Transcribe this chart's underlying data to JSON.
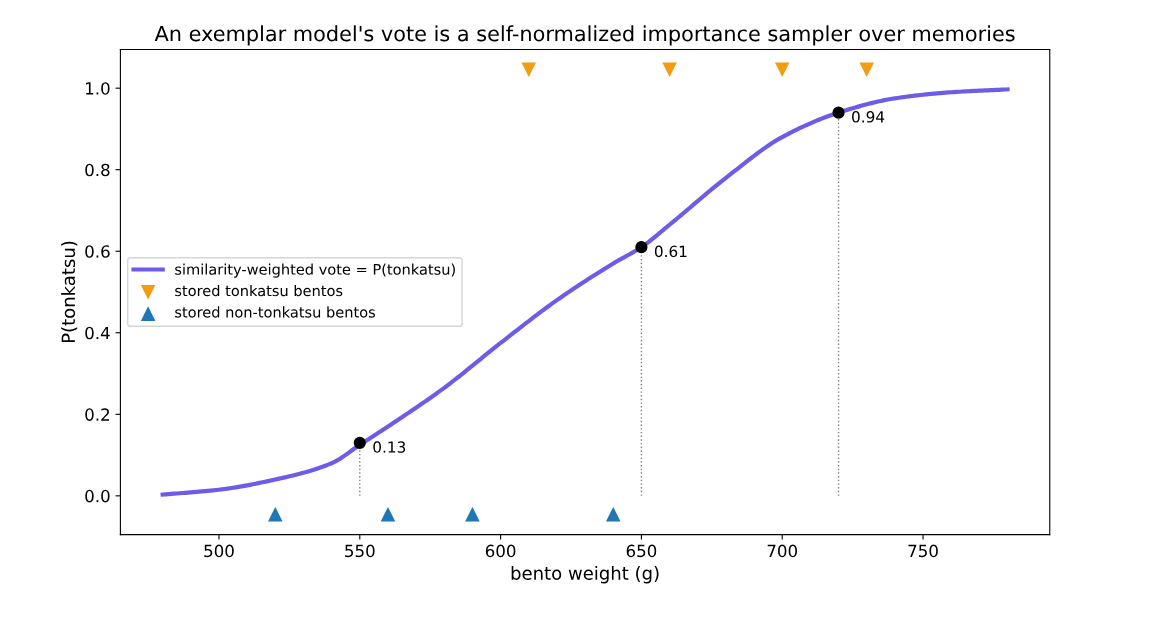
{
  "chart_data": {
    "type": "line",
    "title": "An exemplar model's vote is a self-normalized importance sampler over memories",
    "xlabel": "bento weight (g)",
    "ylabel": "P(tonkatsu)",
    "xlim": [
      465,
      795
    ],
    "xticks": [
      500,
      550,
      600,
      650,
      700,
      750
    ],
    "ylim": [
      -0.095,
      1.095
    ],
    "yticks": [
      {
        "value": 0,
        "label": "0.0"
      },
      0.2,
      0.4,
      0.6,
      0.8,
      {
        "value": 1,
        "label": "1.0"
      }
    ],
    "grid": false,
    "legend": "center left",
    "series": [
      {
        "name": "similarity-weighted vote = P(tonkatsu)",
        "color": "#6c5ce7",
        "marker": "none",
        "line_style": "solid",
        "x": [
          480,
          500,
          520,
          540,
          550,
          560,
          580,
          600,
          620,
          640,
          650,
          660,
          680,
          700,
          720,
          740,
          760,
          780
        ],
        "values": [
          0.003,
          0.015,
          0.04,
          0.08,
          0.125,
          0.17,
          0.265,
          0.375,
          0.48,
          0.57,
          0.61,
          0.665,
          0.78,
          0.88,
          0.94,
          0.975,
          0.99,
          0.997
        ]
      },
      {
        "type": "scatter",
        "name": "stored tonkatsu bentos",
        "color": "#f39c12",
        "marker": "triangle_down",
        "x": [
          610,
          660,
          700,
          730
        ],
        "values": [
          1.045,
          1.045,
          1.045,
          1.045
        ]
      },
      {
        "type": "scatter",
        "name": "stored non-tonkatsu bentos",
        "color": "#1f77b4",
        "marker": "triangle",
        "x": [
          520,
          560,
          590,
          640
        ],
        "values": [
          -0.045,
          -0.045,
          -0.045,
          -0.045
        ]
      },
      {
        "type": "lollipop",
        "color": "#000000",
        "marker": "circle",
        "line_style": "dotted",
        "data_labels": true,
        "x": [
          550,
          650,
          720
        ],
        "values": [
          0.13,
          0.61,
          0.94
        ]
      }
    ]
  }
}
